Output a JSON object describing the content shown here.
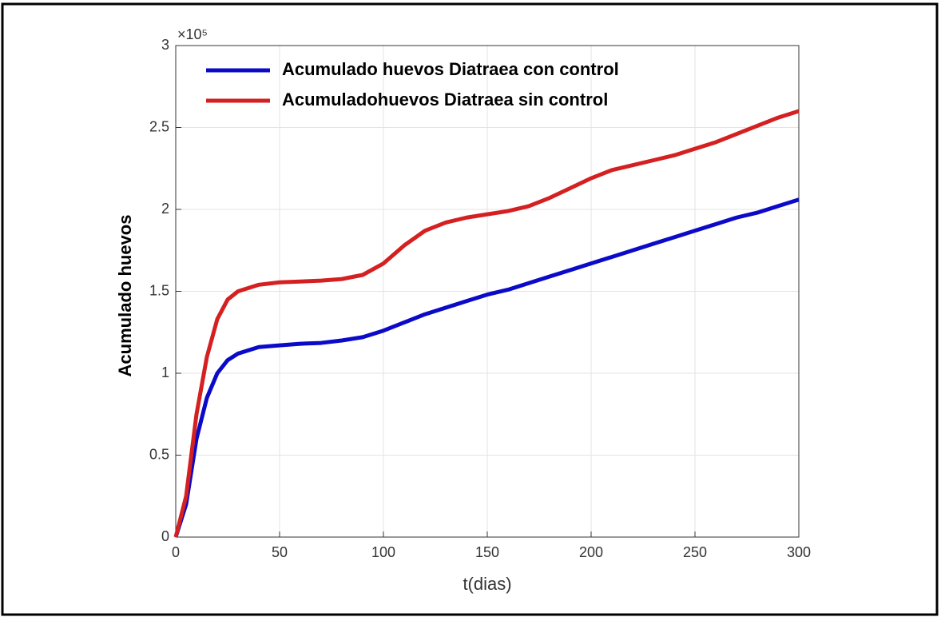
{
  "chart_data": {
    "type": "line",
    "x_label": "t(dias)",
    "y_label": "Acumulado huevos",
    "y_multiplier": "×10⁵",
    "x": [
      0,
      5,
      10,
      15,
      20,
      25,
      30,
      40,
      50,
      60,
      70,
      80,
      90,
      100,
      110,
      120,
      130,
      140,
      150,
      160,
      170,
      180,
      190,
      200,
      210,
      220,
      230,
      240,
      250,
      260,
      270,
      280,
      290,
      300
    ],
    "series": [
      {
        "name": "Acumulado huevos Diatraea con control",
        "color": "#0a0ac8",
        "values": [
          0,
          0.2,
          0.6,
          0.85,
          1.0,
          1.08,
          1.12,
          1.16,
          1.17,
          1.18,
          1.185,
          1.2,
          1.22,
          1.26,
          1.31,
          1.36,
          1.4,
          1.44,
          1.48,
          1.51,
          1.55,
          1.59,
          1.63,
          1.67,
          1.71,
          1.75,
          1.79,
          1.83,
          1.87,
          1.91,
          1.95,
          1.98,
          2.02,
          2.06
        ]
      },
      {
        "name": "Acumuladohuevos Diatraea sin control",
        "color": "#d42020",
        "values": [
          0,
          0.25,
          0.75,
          1.1,
          1.33,
          1.45,
          1.5,
          1.54,
          1.555,
          1.56,
          1.565,
          1.575,
          1.6,
          1.67,
          1.78,
          1.87,
          1.92,
          1.95,
          1.97,
          1.99,
          2.02,
          2.07,
          2.13,
          2.19,
          2.24,
          2.27,
          2.3,
          2.33,
          2.37,
          2.41,
          2.46,
          2.51,
          2.56,
          2.6
        ]
      }
    ],
    "xlim": [
      0,
      300
    ],
    "xticks": [
      0,
      50,
      100,
      150,
      200,
      250,
      300
    ],
    "ylim": [
      0,
      3
    ],
    "yticks": [
      0,
      0.5,
      1,
      1.5,
      2,
      2.5,
      3
    ],
    "grid": true,
    "legend": "upper-left"
  }
}
